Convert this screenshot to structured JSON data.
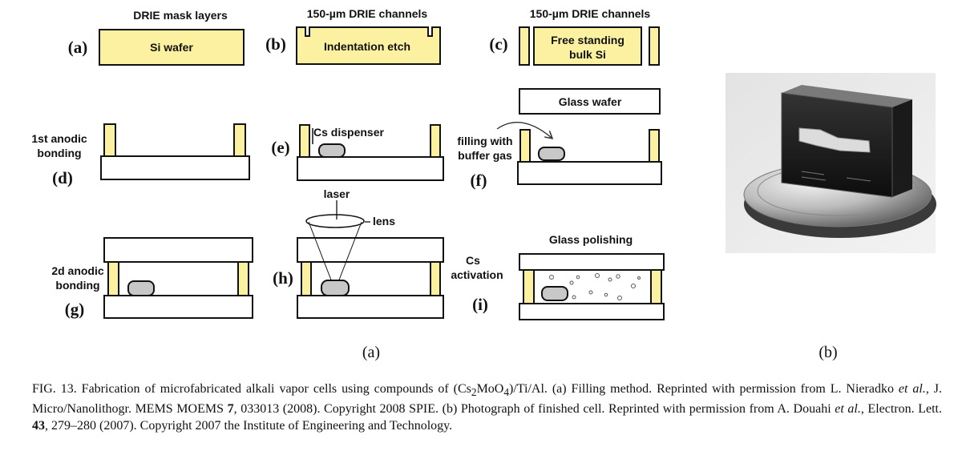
{
  "panels": {
    "a": {
      "label": "(a)",
      "title": "DRIE mask layers",
      "inner": "Si wafer"
    },
    "b": {
      "label": "(b)",
      "title": "150-µm DRIE channels",
      "inner": "Indentation etch"
    },
    "c": {
      "label": "(c)",
      "title": "150-µm DRIE channels",
      "inner_line1": "Free standing",
      "inner_line2": "bulk Si"
    },
    "d": {
      "label": "(d)",
      "line1": "1st anodic",
      "line2": "bonding"
    },
    "e": {
      "label": "(e)",
      "text": "Cs  dispenser"
    },
    "f": {
      "label": "(f)",
      "glass": "Glass wafer",
      "line1": "filling with",
      "line2": "buffer gas"
    },
    "g": {
      "label": "(g)",
      "line1": "2d anodic",
      "line2": "bonding"
    },
    "h": {
      "label": "(h)",
      "laser": "laser",
      "lens": "lens"
    },
    "i": {
      "label": "(i)",
      "title": "Glass polishing",
      "line1": "Cs",
      "line2": "activation"
    }
  },
  "sublabels": {
    "left": "(a)",
    "right": "(b)"
  },
  "photo_description": "Photograph of finished cell",
  "caption": {
    "fig": "FIG. 13.",
    "t1": " Fabrication of microfabricated alkali vapor cells using compounds of (Cs",
    "sub1": "2",
    "t2": "MoO",
    "sub2": "4",
    "t3": ")/Ti/Al. (a) Filling method. Reprinted with permission from L. Nieradko ",
    "etal1": "et al.",
    "t4": ", J. Micro/Nanolithogr. MEMS MOEMS ",
    "vol1": "7",
    "t5": ", 033013 (2008). Copyright 2008 SPIE. (b) Photograph of finished cell. Reprinted with permission from A. Douahi ",
    "etal2": "et al.",
    "t6": ", Electron. Lett. ",
    "vol2": "43",
    "t7": ", 279–280 (2007). Copyright 2007 the Institute of Engineering and Technology."
  },
  "colors": {
    "wafer_fill": "#fbf1a0",
    "glass_fill": "#ffffff",
    "dispenser_fill": "#c8c8c8",
    "outline": "#111111"
  }
}
